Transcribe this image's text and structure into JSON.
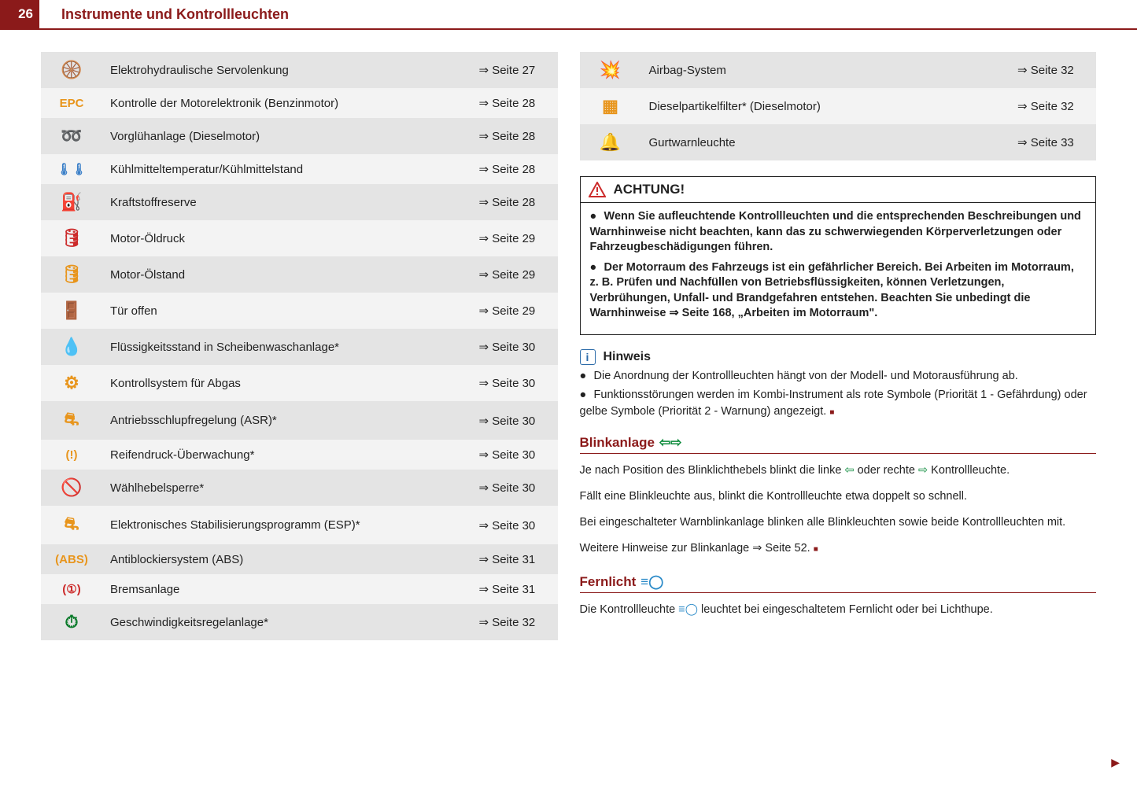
{
  "header": {
    "page_number": "26",
    "title": "Instrumente und Kontrollleuchten"
  },
  "colors": {
    "brand": "#8b1a1a",
    "orange": "#e8951c",
    "red": "#cc2a2a",
    "blue": "#3a7fc8",
    "green": "#0a7a2a",
    "blue_hint": "#2a6aa8"
  },
  "left_table": [
    {
      "icon": "🛞",
      "icon_class": "ic-orange",
      "label": "Elektrohydraulische Servolenkung",
      "ref": "⇒ Seite 27"
    },
    {
      "icon": "EPC",
      "icon_class": "ic-orange",
      "label": "Kontrolle der Motorelektronik (Benzinmotor)",
      "ref": "⇒ Seite 28"
    },
    {
      "icon": "➿",
      "icon_class": "ic-orange",
      "label": "Vorglühanlage (Dieselmotor)",
      "ref": "⇒ Seite 28"
    },
    {
      "icon": "🌡🌡",
      "icon_class": "ic-blue",
      "label": "Kühlmitteltemperatur/Kühlmittelstand",
      "ref": "⇒ Seite 28"
    },
    {
      "icon": "⛽",
      "icon_class": "ic-orange",
      "label": "Kraftstoffreserve",
      "ref": "⇒ Seite 28"
    },
    {
      "icon": "🛢",
      "icon_class": "ic-red",
      "label": "Motor-Öldruck",
      "ref": "⇒ Seite 29"
    },
    {
      "icon": "🛢",
      "icon_class": "ic-orange",
      "label": "Motor-Ölstand",
      "ref": "⇒ Seite 29"
    },
    {
      "icon": "🚪",
      "icon_class": "ic-red",
      "label": "Tür offen",
      "ref": "⇒ Seite 29"
    },
    {
      "icon": "💧",
      "icon_class": "ic-orange",
      "label": "Flüssigkeitsstand in Scheibenwaschanlage*",
      "ref": "⇒ Seite 30"
    },
    {
      "icon": "⚙",
      "icon_class": "ic-orange",
      "label": "Kontrollsystem für Abgas",
      "ref": "⇒ Seite 30"
    },
    {
      "icon": "⛐",
      "icon_class": "ic-orange",
      "label": "Antriebsschlupfregelung (ASR)*",
      "ref": "⇒ Seite 30"
    },
    {
      "icon": "(!)",
      "icon_class": "ic-orange",
      "label": "Reifendruck-Überwachung*",
      "ref": "⇒ Seite 30"
    },
    {
      "icon": "🚫",
      "icon_class": "ic-green",
      "label": "Wählhebelsperre*",
      "ref": "⇒ Seite 30"
    },
    {
      "icon": "⛐",
      "icon_class": "ic-orange",
      "label": "Elektronisches Stabilisierungsprogramm (ESP)*",
      "ref": "⇒ Seite 30"
    },
    {
      "icon": "(ABS)",
      "icon_class": "ic-orange",
      "label": "Antiblockiersystem (ABS)",
      "ref": "⇒ Seite 31"
    },
    {
      "icon": "(①)",
      "icon_class": "ic-red",
      "label": "Bremsanlage",
      "ref": "⇒ Seite 31"
    },
    {
      "icon": "⏱",
      "icon_class": "ic-green",
      "label": "Geschwindigkeitsregelanlage*",
      "ref": "⇒ Seite 32"
    }
  ],
  "right_table": [
    {
      "icon": "💥",
      "icon_class": "ic-orange",
      "label": "Airbag-System",
      "ref": "⇒ Seite 32"
    },
    {
      "icon": "▦",
      "icon_class": "ic-orange",
      "label": "Dieselpartikelfilter* (Dieselmotor)",
      "ref": "⇒ Seite 32"
    },
    {
      "icon": "🔔",
      "icon_class": "ic-red",
      "label": "Gurtwarnleuchte",
      "ref": "⇒ Seite 33"
    }
  ],
  "warning": {
    "title": "ACHTUNG!",
    "items": [
      "Wenn Sie aufleuchtende Kontrollleuchten und die entsprechenden Beschreibungen und Warnhinweise nicht beachten, kann das zu schwerwiegenden Körperverletzungen oder Fahrzeugbeschädigungen führen.",
      "Der Motorraum des Fahrzeugs ist ein gefährlicher Bereich. Bei Arbeiten im Motorraum, z. B. Prüfen und Nachfüllen von Betriebsflüssigkeiten, können Verletzungen, Verbrühungen, Unfall- und Brandgefahren entstehen. Beachten Sie unbedingt die Warnhinweise ⇒ Seite 168, „Arbeiten im Motorraum\"."
    ]
  },
  "hinweis": {
    "title": "Hinweis",
    "items": [
      "Die Anordnung der Kontrollleuchten hängt von der Modell- und Motorausführung ab.",
      "Funktionsstörungen werden im Kombi-Instrument als rote Symbole (Priorität 1 - Gefährdung) oder gelbe Symbole (Priorität 2 - Warnung) angezeigt."
    ]
  },
  "blinkanlage": {
    "title": "Blinkanlage",
    "icons": "⇦⇨",
    "p1a": "Je nach Position des Blinklichthebels blinkt die linke ",
    "p1b": " oder rechte ",
    "p1c": " Kontrollleuchte.",
    "p2": "Fällt eine Blinkleuchte aus, blinkt die Kontrollleuchte etwa doppelt so schnell.",
    "p3": "Bei eingeschalteter Warnblinkanlage blinken alle Blinkleuchten sowie beide Kontrollleuchten mit.",
    "p4": "Weitere Hinweise zur Blinkanlage ⇒ Seite 52."
  },
  "fernlicht": {
    "title": "Fernlicht",
    "icon": "≡◯",
    "p1a": "Die Kontrollleuchte ",
    "p1b": " leuchtet bei eingeschaltetem Fernlicht oder bei Lichthupe."
  },
  "continue_marker": "▶"
}
